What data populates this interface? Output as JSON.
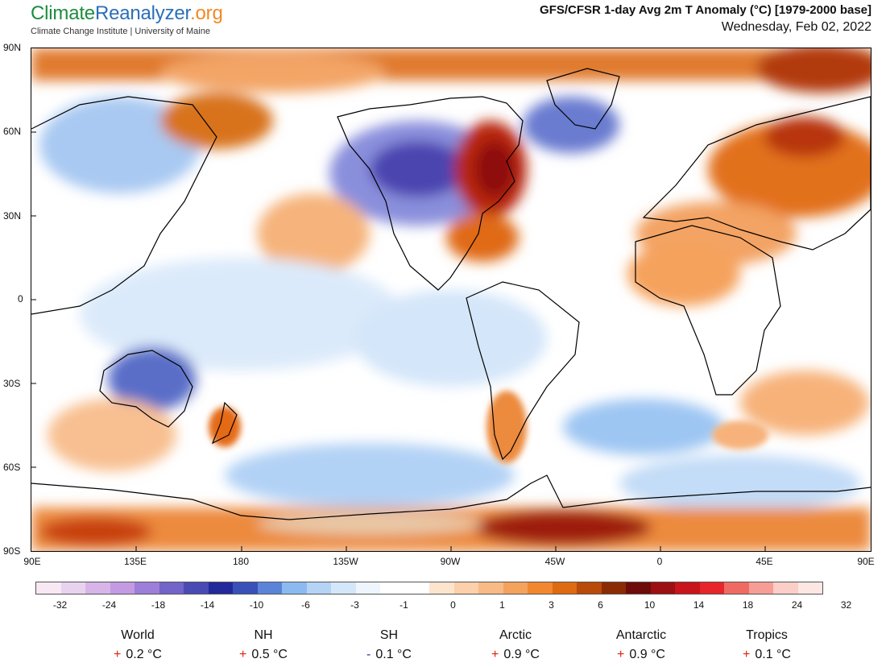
{
  "brand": {
    "part1": "Climate",
    "part2": "Reanalyzer",
    "part3": ".org",
    "subtitle": "Climate Change Institute | University of Maine"
  },
  "header": {
    "title": "GFS/CFSR 1-day Avg 2m T Anomaly (°C) [1979-2000 base]",
    "date": "Wednesday, Feb 02, 2022"
  },
  "map": {
    "lat_labels": [
      "90N",
      "60N",
      "30N",
      "0",
      "30S",
      "60S",
      "90S"
    ],
    "lon_labels": [
      "90E",
      "135E",
      "180",
      "135W",
      "90W",
      "45W",
      "0",
      "45E",
      "90E"
    ]
  },
  "colorbar": {
    "labels": [
      "-32",
      "-24",
      "-18",
      "-14",
      "-10",
      "-6",
      "-3",
      "-1",
      "0",
      "1",
      "3",
      "6",
      "10",
      "14",
      "18",
      "24",
      "32"
    ],
    "colors": [
      "#f7e8f4",
      "#e8d3ef",
      "#d7b5e8",
      "#c49ae2",
      "#9d7ed8",
      "#7264c8",
      "#4a4ab5",
      "#22299a",
      "#3950b8",
      "#5b84d8",
      "#8cbaf0",
      "#b5d3f5",
      "#d4e6f9",
      "#eef5fc",
      "#ffffff",
      "#ffffff",
      "#fde4cd",
      "#fbd0ab",
      "#f8ba86",
      "#f5a25d",
      "#f1872f",
      "#de6a12",
      "#b84a0a",
      "#8b2b05",
      "#6e0c0c",
      "#9c0f13",
      "#c8141b",
      "#e6262a",
      "#f06a64",
      "#f69d95",
      "#fbcfc7",
      "#fde7e3"
    ]
  },
  "stats": [
    {
      "name": "World",
      "sign": "+",
      "value": "0.2 °C"
    },
    {
      "name": "NH",
      "sign": "+",
      "value": "0.5 °C"
    },
    {
      "name": "SH",
      "sign": "-",
      "value": "0.1 °C"
    },
    {
      "name": "Arctic",
      "sign": "+",
      "value": "0.9 °C"
    },
    {
      "name": "Antarctic",
      "sign": "+",
      "value": "0.9 °C"
    },
    {
      "name": "Tropics",
      "sign": "+",
      "value": "0.1 °C"
    }
  ]
}
